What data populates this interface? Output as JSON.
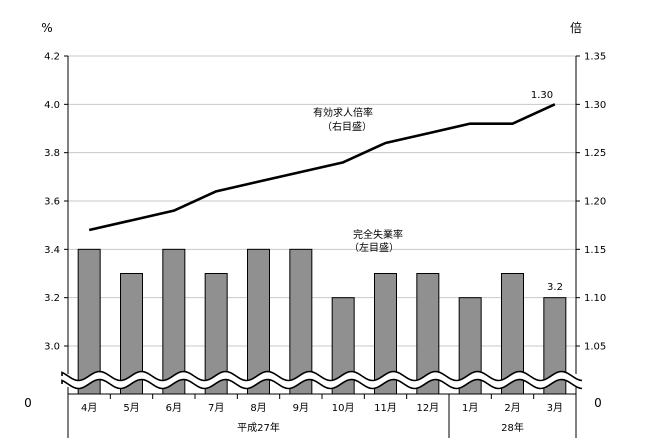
{
  "chart_data": {
    "type": "bar+line",
    "categories": [
      "4月",
      "5月",
      "6月",
      "7月",
      "8月",
      "9月",
      "10月",
      "11月",
      "12月",
      "1月",
      "2月",
      "3月"
    ],
    "groups": [
      {
        "label": "平成27年",
        "from": 0,
        "to": 8
      },
      {
        "label": "28年",
        "from": 9,
        "to": 11
      }
    ],
    "left_axis": {
      "unit": "%",
      "ticks": [
        "3.0",
        "3.2",
        "3.4",
        "3.6",
        "3.8",
        "4.0",
        "4.2"
      ],
      "range": [
        3.0,
        4.2
      ],
      "zero_label": "0"
    },
    "right_axis": {
      "unit": "倍",
      "ticks": [
        "1.05",
        "1.10",
        "1.15",
        "1.20",
        "1.25",
        "1.30",
        "1.35"
      ],
      "range": [
        1.05,
        1.35
      ],
      "zero_label": "0"
    },
    "series": [
      {
        "name": "完全失業率",
        "type": "bar",
        "axis": "left",
        "values": [
          3.4,
          3.3,
          3.4,
          3.3,
          3.4,
          3.4,
          3.2,
          3.3,
          3.3,
          3.2,
          3.3,
          3.2
        ],
        "label_lines": [
          "完全失業率",
          "（左目盛）"
        ],
        "end_label": "3.2",
        "color": "#909090"
      },
      {
        "name": "有効求人倍率",
        "type": "line",
        "axis": "right",
        "values": [
          1.17,
          1.18,
          1.19,
          1.21,
          1.22,
          1.23,
          1.24,
          1.26,
          1.27,
          1.28,
          1.28,
          1.3
        ],
        "label_lines": [
          "有効求人倍率",
          "（右目盛）"
        ],
        "end_label": "1.30",
        "color": "#000000"
      }
    ],
    "grid": true,
    "axis_break": true
  }
}
